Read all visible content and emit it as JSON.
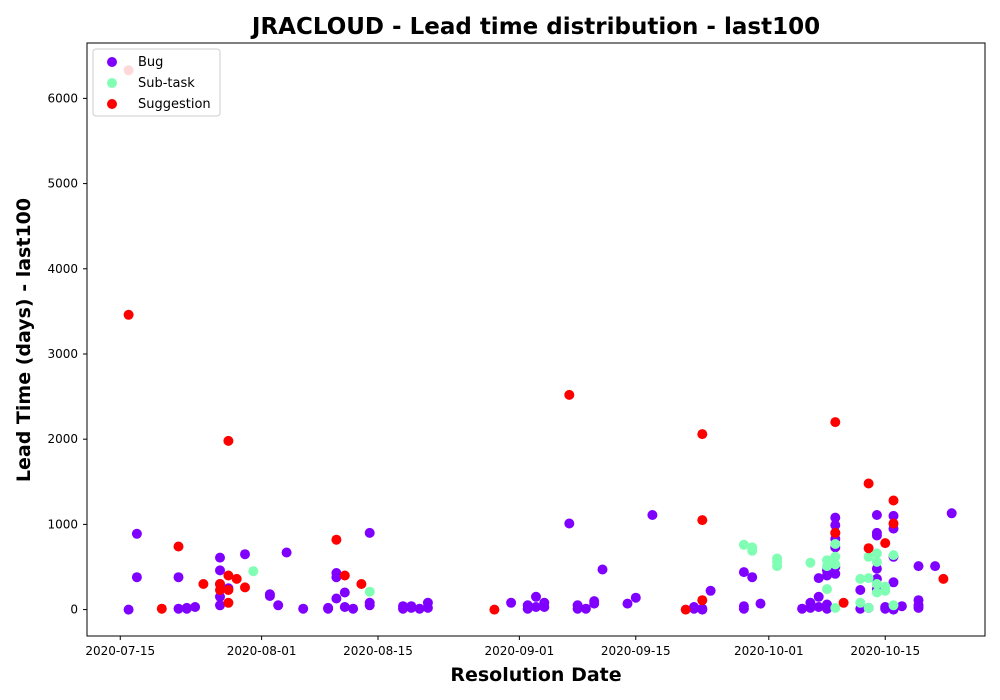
{
  "chart_data": {
    "type": "scatter",
    "title": "JRACLOUD - Lead time distribution - last100",
    "xlabel": "Resolution Date",
    "ylabel": "Lead Time (days) - last100",
    "x_scale": "date",
    "xlim": [
      "2020-07-11",
      "2020-10-27"
    ],
    "ylim": [
      -310,
      6650
    ],
    "x_ticks": [
      "2020-07-15",
      "2020-08-01",
      "2020-08-15",
      "2020-09-01",
      "2020-09-15",
      "2020-10-01",
      "2020-10-15"
    ],
    "y_ticks": [
      0,
      1000,
      2000,
      3000,
      4000,
      5000,
      6000
    ],
    "grid": false,
    "legend_position": "top-left",
    "series": [
      {
        "name": "Bug",
        "color": "#8000ff",
        "points": [
          [
            "2020-07-16",
            0
          ],
          [
            "2020-07-17",
            890
          ],
          [
            "2020-07-17",
            380
          ],
          [
            "2020-07-22",
            10
          ],
          [
            "2020-07-22",
            380
          ],
          [
            "2020-07-23",
            10
          ],
          [
            "2020-07-24",
            30
          ],
          [
            "2020-07-23",
            20
          ],
          [
            "2020-07-27",
            610
          ],
          [
            "2020-07-27",
            460
          ],
          [
            "2020-07-27",
            300
          ],
          [
            "2020-07-27",
            150
          ],
          [
            "2020-07-27",
            50
          ],
          [
            "2020-07-28",
            250
          ],
          [
            "2020-07-30",
            650
          ],
          [
            "2020-08-02",
            180
          ],
          [
            "2020-08-02",
            160
          ],
          [
            "2020-08-03",
            50
          ],
          [
            "2020-08-04",
            670
          ],
          [
            "2020-08-06",
            10
          ],
          [
            "2020-08-09",
            20
          ],
          [
            "2020-08-09",
            10
          ],
          [
            "2020-08-10",
            130
          ],
          [
            "2020-08-10",
            430
          ],
          [
            "2020-08-10",
            380
          ],
          [
            "2020-08-11",
            200
          ],
          [
            "2020-08-11",
            30
          ],
          [
            "2020-08-12",
            10
          ],
          [
            "2020-08-14",
            900
          ],
          [
            "2020-08-14",
            80
          ],
          [
            "2020-08-14",
            50
          ],
          [
            "2020-08-18",
            10
          ],
          [
            "2020-08-18",
            40
          ],
          [
            "2020-08-19",
            20
          ],
          [
            "2020-08-19",
            40
          ],
          [
            "2020-08-20",
            10
          ],
          [
            "2020-08-21",
            20
          ],
          [
            "2020-08-21",
            80
          ],
          [
            "2020-08-31",
            80
          ],
          [
            "2020-09-02",
            50
          ],
          [
            "2020-09-02",
            10
          ],
          [
            "2020-09-03",
            150
          ],
          [
            "2020-09-03",
            30
          ],
          [
            "2020-09-04",
            80
          ],
          [
            "2020-09-04",
            30
          ],
          [
            "2020-09-07",
            1010
          ],
          [
            "2020-09-08",
            50
          ],
          [
            "2020-09-08",
            10
          ],
          [
            "2020-09-09",
            10
          ],
          [
            "2020-09-10",
            100
          ],
          [
            "2020-09-10",
            70
          ],
          [
            "2020-09-11",
            470
          ],
          [
            "2020-09-14",
            70
          ],
          [
            "2020-09-15",
            140
          ],
          [
            "2020-09-17",
            1110
          ],
          [
            "2020-09-22",
            30
          ],
          [
            "2020-09-22",
            10
          ],
          [
            "2020-09-23",
            10
          ],
          [
            "2020-09-23",
            0
          ],
          [
            "2020-09-24",
            220
          ],
          [
            "2020-09-28",
            440
          ],
          [
            "2020-09-28",
            40
          ],
          [
            "2020-09-28",
            10
          ],
          [
            "2020-09-29",
            380
          ],
          [
            "2020-09-30",
            70
          ],
          [
            "2020-10-05",
            10
          ],
          [
            "2020-10-06",
            20
          ],
          [
            "2020-10-06",
            80
          ],
          [
            "2020-10-07",
            150
          ],
          [
            "2020-10-07",
            30
          ],
          [
            "2020-10-07",
            370
          ],
          [
            "2020-10-08",
            400
          ],
          [
            "2020-10-08",
            460
          ],
          [
            "2020-10-08",
            60
          ],
          [
            "2020-10-08",
            10
          ],
          [
            "2020-10-09",
            1080
          ],
          [
            "2020-10-09",
            990
          ],
          [
            "2020-10-09",
            900
          ],
          [
            "2020-10-09",
            830
          ],
          [
            "2020-10-09",
            730
          ],
          [
            "2020-10-09",
            500
          ],
          [
            "2020-10-09",
            420
          ],
          [
            "2020-10-12",
            10
          ],
          [
            "2020-10-12",
            230
          ],
          [
            "2020-10-13",
            20
          ],
          [
            "2020-10-14",
            1110
          ],
          [
            "2020-10-14",
            900
          ],
          [
            "2020-10-14",
            870
          ],
          [
            "2020-10-14",
            480
          ],
          [
            "2020-10-14",
            360
          ],
          [
            "2020-10-14",
            240
          ],
          [
            "2020-10-15",
            30
          ],
          [
            "2020-10-15",
            10
          ],
          [
            "2020-10-16",
            0
          ],
          [
            "2020-10-16",
            1100
          ],
          [
            "2020-10-16",
            950
          ],
          [
            "2020-10-16",
            620
          ],
          [
            "2020-10-16",
            320
          ],
          [
            "2020-10-17",
            40
          ],
          [
            "2020-10-19",
            50
          ],
          [
            "2020-10-19",
            110
          ],
          [
            "2020-10-19",
            20
          ],
          [
            "2020-10-19",
            510
          ],
          [
            "2020-10-21",
            510
          ],
          [
            "2020-10-23",
            1130
          ]
        ]
      },
      {
        "name": "Sub-task",
        "color": "#80ffb4",
        "points": [
          [
            "2020-07-31",
            450
          ],
          [
            "2020-08-14",
            210
          ],
          [
            "2020-09-28",
            760
          ],
          [
            "2020-09-29",
            730
          ],
          [
            "2020-09-29",
            690
          ],
          [
            "2020-10-02",
            600
          ],
          [
            "2020-10-02",
            560
          ],
          [
            "2020-10-02",
            510
          ],
          [
            "2020-10-06",
            550
          ],
          [
            "2020-10-08",
            580
          ],
          [
            "2020-10-08",
            510
          ],
          [
            "2020-10-08",
            240
          ],
          [
            "2020-10-09",
            770
          ],
          [
            "2020-10-09",
            620
          ],
          [
            "2020-10-09",
            530
          ],
          [
            "2020-10-09",
            20
          ],
          [
            "2020-10-12",
            360
          ],
          [
            "2020-10-12",
            80
          ],
          [
            "2020-10-13",
            620
          ],
          [
            "2020-10-13",
            370
          ],
          [
            "2020-10-13",
            20
          ],
          [
            "2020-10-14",
            660
          ],
          [
            "2020-10-14",
            560
          ],
          [
            "2020-10-14",
            300
          ],
          [
            "2020-10-14",
            200
          ],
          [
            "2020-10-15",
            270
          ],
          [
            "2020-10-15",
            220
          ],
          [
            "2020-10-16",
            640
          ],
          [
            "2020-10-16",
            50
          ]
        ]
      },
      {
        "name": "Suggestion",
        "color": "#ff0000",
        "points": [
          [
            "2020-07-16",
            6330
          ],
          [
            "2020-07-16",
            3460
          ],
          [
            "2020-07-20",
            10
          ],
          [
            "2020-07-22",
            740
          ],
          [
            "2020-07-25",
            300
          ],
          [
            "2020-07-27",
            300
          ],
          [
            "2020-07-27",
            230
          ],
          [
            "2020-07-28",
            1980
          ],
          [
            "2020-07-28",
            400
          ],
          [
            "2020-07-28",
            230
          ],
          [
            "2020-07-28",
            80
          ],
          [
            "2020-07-29",
            360
          ],
          [
            "2020-07-30",
            260
          ],
          [
            "2020-08-10",
            820
          ],
          [
            "2020-08-11",
            400
          ],
          [
            "2020-08-13",
            300
          ],
          [
            "2020-08-29",
            0
          ],
          [
            "2020-09-07",
            2520
          ],
          [
            "2020-09-21",
            0
          ],
          [
            "2020-09-23",
            2060
          ],
          [
            "2020-09-23",
            1050
          ],
          [
            "2020-09-23",
            110
          ],
          [
            "2020-10-09",
            2200
          ],
          [
            "2020-10-09",
            900
          ],
          [
            "2020-10-10",
            80
          ],
          [
            "2020-10-13",
            1480
          ],
          [
            "2020-10-13",
            720
          ],
          [
            "2020-10-15",
            780
          ],
          [
            "2020-10-16",
            1280
          ],
          [
            "2020-10-16",
            1010
          ],
          [
            "2020-10-22",
            360
          ]
        ]
      }
    ]
  }
}
